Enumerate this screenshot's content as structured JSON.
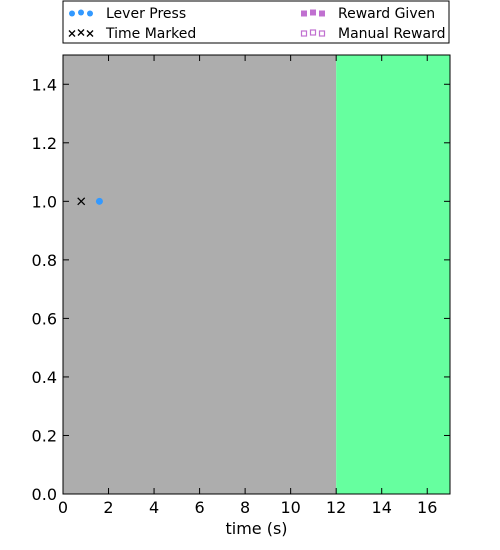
{
  "chart_data": {
    "type": "scatter",
    "xlabel": "time (s)",
    "ylabel": "",
    "xlim": [
      0,
      17
    ],
    "ylim": [
      0,
      1.5
    ],
    "x_ticks": [
      0,
      2,
      4,
      6,
      8,
      10,
      12,
      14,
      16
    ],
    "y_ticks": [
      0.0,
      0.2,
      0.4,
      0.6,
      0.8,
      1.0,
      1.2,
      1.4
    ],
    "x_tick_labels": [
      "0",
      "2",
      "4",
      "6",
      "8",
      "10",
      "12",
      "14",
      "16"
    ],
    "y_tick_labels": [
      "0.0",
      "0.2",
      "0.4",
      "0.6",
      "0.8",
      "1.0",
      "1.2",
      "1.4"
    ],
    "grid": false,
    "legend_placement": "top",
    "background_regions": [
      {
        "x_start": 0,
        "x_end": 12,
        "color": "#adadad"
      },
      {
        "x_start": 12,
        "x_end": 17,
        "color": "#66ff9f"
      }
    ],
    "series": [
      {
        "name": "Lever Press",
        "marker": "circle",
        "color": "#3399ff",
        "points": [
          {
            "x": 1.6,
            "y": 1.0
          }
        ]
      },
      {
        "name": "Time Marked",
        "marker": "x",
        "color": "#000000",
        "points": [
          {
            "x": 0.8,
            "y": 1.0
          }
        ]
      },
      {
        "name": "Reward Given",
        "marker": "square-filled",
        "color": "#c070d0",
        "points": []
      },
      {
        "name": "Manual Reward",
        "marker": "square-open",
        "color": "#c070d0",
        "points": []
      }
    ]
  }
}
